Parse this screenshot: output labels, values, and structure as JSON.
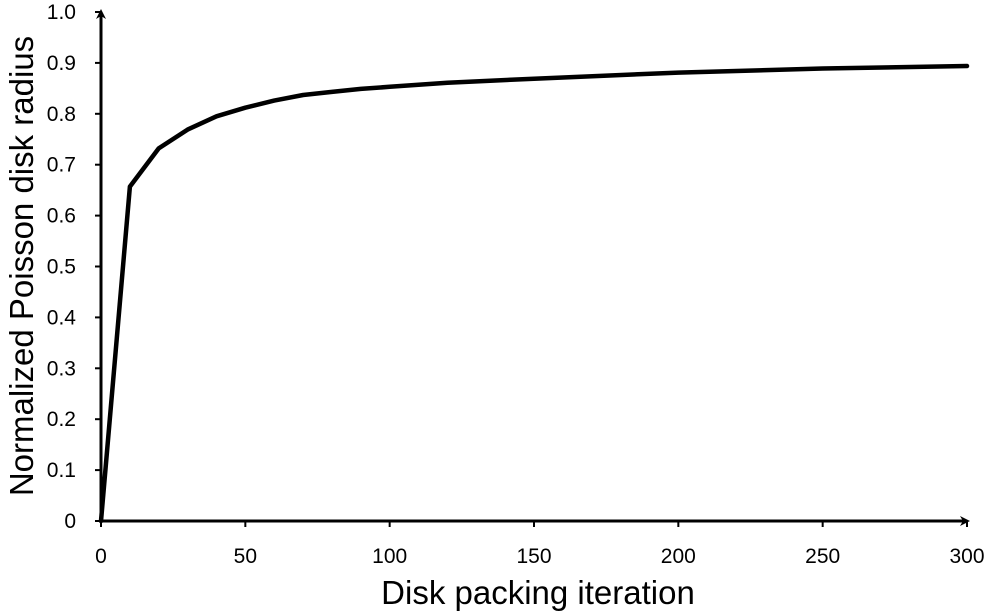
{
  "chart_data": {
    "type": "line",
    "title": "",
    "xlabel": "Disk packing iteration",
    "ylabel": "Normalized Poisson disk radius",
    "xlim": [
      0,
      300
    ],
    "ylim": [
      0,
      1.0
    ],
    "x_ticks": [
      "0",
      "50",
      "100",
      "150",
      "200",
      "250",
      "300"
    ],
    "y_ticks": [
      "0",
      "0.1",
      "0.2",
      "0.3",
      "0.4",
      "0.5",
      "0.6",
      "0.7",
      "0.8",
      "0.9",
      "1.0"
    ],
    "grid": false,
    "legend": "none",
    "series": [
      {
        "color": "#000000",
        "x": [
          0,
          10,
          20,
          30,
          40,
          50,
          60,
          70,
          80,
          90,
          100,
          120,
          150,
          200,
          250,
          300
        ],
        "y": [
          0.0,
          0.657,
          0.732,
          0.769,
          0.795,
          0.812,
          0.826,
          0.837,
          0.843,
          0.849,
          0.853,
          0.861,
          0.869,
          0.881,
          0.889,
          0.894
        ]
      }
    ]
  }
}
